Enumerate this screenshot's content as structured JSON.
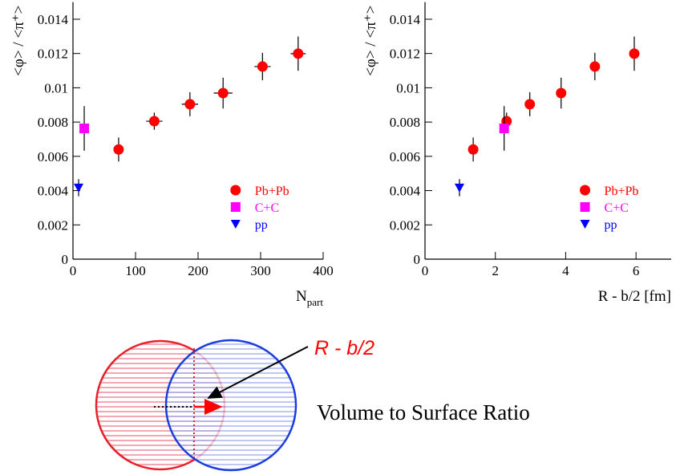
{
  "chart_data": [
    {
      "type": "scatter",
      "ylabel": "<φ> / <π⁺>",
      "xlabel": "N",
      "xlabel_sub": "part",
      "xlim": [
        0,
        400
      ],
      "xticks": [
        0,
        100,
        200,
        300,
        400
      ],
      "ylim": [
        0,
        0.015
      ],
      "yticks": [
        0,
        0.002,
        0.004,
        0.006,
        0.008,
        0.01,
        0.012,
        0.014
      ],
      "legend": "lower right",
      "series": [
        {
          "name": "Pb+Pb",
          "color": "#ff0000",
          "marker": "circle",
          "x": [
            73,
            130,
            187,
            240,
            303,
            360
          ],
          "values": [
            0.0064,
            0.00805,
            0.00904,
            0.00969,
            0.01124,
            0.01199
          ],
          "xerr": [
            0,
            13,
            13,
            15,
            13,
            12
          ],
          "yerr": [
            0.0007,
            0.0005,
            0.0007,
            0.0009,
            0.0008,
            0.001
          ]
        },
        {
          "name": "C+C",
          "color": "#ff00ff",
          "marker": "square",
          "x": [
            18
          ],
          "values": [
            0.00763
          ],
          "yerr": [
            0.0013
          ]
        },
        {
          "name": "pp",
          "color": "#0000ff",
          "marker": "triangle-down",
          "x": [
            9
          ],
          "values": [
            0.00417
          ],
          "yerr": [
            0.0005
          ]
        }
      ]
    },
    {
      "type": "scatter",
      "ylabel": "<φ> / <π⁺>",
      "xlabel": "R - b/2 [fm]",
      "xlim": [
        0,
        7
      ],
      "xticks": [
        0,
        2,
        4,
        6
      ],
      "ylim": [
        0,
        0.015
      ],
      "yticks": [
        0,
        0.002,
        0.004,
        0.006,
        0.008,
        0.01,
        0.012,
        0.014
      ],
      "legend": "lower right",
      "series": [
        {
          "name": "Pb+Pb",
          "color": "#ff0000",
          "marker": "circle",
          "x": [
            1.37,
            2.32,
            2.98,
            3.87,
            4.83,
            5.95
          ],
          "values": [
            0.0064,
            0.00805,
            0.00904,
            0.00969,
            0.01124,
            0.01199
          ],
          "yerr": [
            0.0007,
            0.0005,
            0.0007,
            0.0009,
            0.0008,
            0.001
          ]
        },
        {
          "name": "C+C",
          "color": "#ff00ff",
          "marker": "square",
          "x": [
            2.25
          ],
          "values": [
            0.00763
          ],
          "yerr": [
            0.0013
          ]
        },
        {
          "name": "pp",
          "color": "#0000ff",
          "marker": "triangle-down",
          "x": [
            0.98
          ],
          "values": [
            0.00417
          ],
          "yerr": [
            0.0005
          ]
        }
      ]
    }
  ],
  "diagram": {
    "label": "R - b/2",
    "caption": "Volume to Surface Ratio"
  }
}
